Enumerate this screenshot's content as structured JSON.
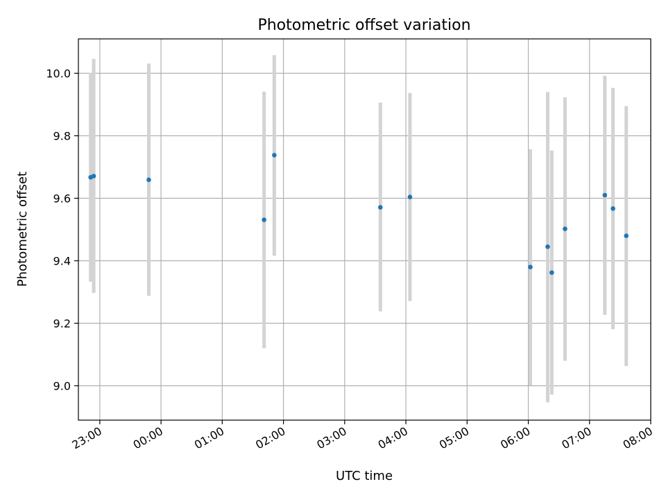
{
  "chart_data": {
    "type": "scatter",
    "title": "Photometric offset variation",
    "xlabel": "UTC time",
    "ylabel": "Photometric offset",
    "x_axis": "time",
    "xlim": [
      "22:39",
      "08:00"
    ],
    "ylim": [
      8.89,
      10.11
    ],
    "grid": true,
    "x_ticks": [
      "23:00",
      "00:00",
      "01:00",
      "02:00",
      "03:00",
      "04:00",
      "05:00",
      "06:00",
      "07:00",
      "08:00"
    ],
    "y_ticks": [
      9.0,
      9.2,
      9.4,
      9.6,
      9.8,
      10.0
    ],
    "point_color": "#1f77b4",
    "errorbar_color": "#d3d3d3",
    "points": [
      {
        "x": "22:51",
        "y": 9.667,
        "ylow": 9.333,
        "yhigh": 10.001
      },
      {
        "x": "22:54",
        "y": 9.671,
        "ylow": 9.297,
        "yhigh": 10.046
      },
      {
        "x": "23:48",
        "y": 9.659,
        "ylow": 9.288,
        "yhigh": 10.031
      },
      {
        "x": "01:41",
        "y": 9.531,
        "ylow": 9.12,
        "yhigh": 9.941
      },
      {
        "x": "01:51",
        "y": 9.738,
        "ylow": 9.416,
        "yhigh": 10.058
      },
      {
        "x": "03:35",
        "y": 9.571,
        "ylow": 9.238,
        "yhigh": 9.906
      },
      {
        "x": "04:04",
        "y": 9.604,
        "ylow": 9.271,
        "yhigh": 9.937
      },
      {
        "x": "06:02",
        "y": 9.38,
        "ylow": 9.001,
        "yhigh": 9.757
      },
      {
        "x": "06:19",
        "y": 9.445,
        "ylow": 8.947,
        "yhigh": 9.94
      },
      {
        "x": "06:23",
        "y": 9.362,
        "ylow": 8.972,
        "yhigh": 9.753
      },
      {
        "x": "06:36",
        "y": 9.502,
        "ylow": 9.08,
        "yhigh": 9.923
      },
      {
        "x": "07:15",
        "y": 9.61,
        "ylow": 9.227,
        "yhigh": 9.992
      },
      {
        "x": "07:23",
        "y": 9.567,
        "ylow": 9.181,
        "yhigh": 9.953
      },
      {
        "x": "07:36",
        "y": 9.48,
        "ylow": 9.063,
        "yhigh": 9.895
      }
    ]
  }
}
